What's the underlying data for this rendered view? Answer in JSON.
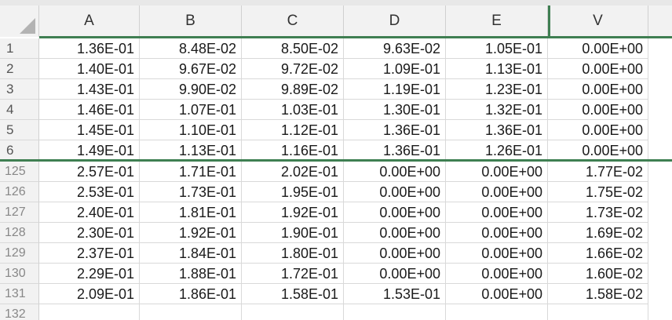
{
  "columns": [
    "A",
    "B",
    "C",
    "D",
    "E",
    "V"
  ],
  "top_rows": [
    {
      "num": "1",
      "cells": [
        "1.36E-01",
        "8.48E-02",
        "8.50E-02",
        "9.63E-02",
        "1.05E-01",
        "0.00E+00"
      ]
    },
    {
      "num": "2",
      "cells": [
        "1.40E-01",
        "9.67E-02",
        "9.72E-02",
        "1.09E-01",
        "1.13E-01",
        "0.00E+00"
      ]
    },
    {
      "num": "3",
      "cells": [
        "1.43E-01",
        "9.90E-02",
        "9.89E-02",
        "1.19E-01",
        "1.23E-01",
        "0.00E+00"
      ]
    },
    {
      "num": "4",
      "cells": [
        "1.46E-01",
        "1.07E-01",
        "1.03E-01",
        "1.30E-01",
        "1.32E-01",
        "0.00E+00"
      ]
    },
    {
      "num": "5",
      "cells": [
        "1.45E-01",
        "1.10E-01",
        "1.12E-01",
        "1.36E-01",
        "1.36E-01",
        "0.00E+00"
      ]
    },
    {
      "num": "6",
      "cells": [
        "1.49E-01",
        "1.13E-01",
        "1.16E-01",
        "1.36E-01",
        "1.26E-01",
        "0.00E+00"
      ]
    }
  ],
  "bottom_rows": [
    {
      "num": "125",
      "cells": [
        "2.57E-01",
        "1.71E-01",
        "2.02E-01",
        "0.00E+00",
        "0.00E+00",
        "1.77E-02"
      ]
    },
    {
      "num": "126",
      "cells": [
        "2.53E-01",
        "1.73E-01",
        "1.95E-01",
        "0.00E+00",
        "0.00E+00",
        "1.75E-02"
      ]
    },
    {
      "num": "127",
      "cells": [
        "2.40E-01",
        "1.81E-01",
        "1.92E-01",
        "0.00E+00",
        "0.00E+00",
        "1.73E-02"
      ]
    },
    {
      "num": "128",
      "cells": [
        "2.30E-01",
        "1.92E-01",
        "1.90E-01",
        "0.00E+00",
        "0.00E+00",
        "1.69E-02"
      ]
    },
    {
      "num": "129",
      "cells": [
        "2.37E-01",
        "1.84E-01",
        "1.80E-01",
        "0.00E+00",
        "0.00E+00",
        "1.66E-02"
      ]
    },
    {
      "num": "130",
      "cells": [
        "2.29E-01",
        "1.88E-01",
        "1.72E-01",
        "0.00E+00",
        "0.00E+00",
        "1.60E-02"
      ]
    },
    {
      "num": "131",
      "cells": [
        "2.09E-01",
        "1.86E-01",
        "1.58E-01",
        "1.53E-01",
        "0.00E+00",
        "1.58E-02"
      ]
    },
    {
      "num": "132",
      "cells": [
        "",
        "",
        "",
        "",
        "",
        ""
      ]
    }
  ],
  "colors": {
    "freeze_line": "#3f7f52",
    "header_bg": "#f2f2f2",
    "gridline": "#d9d9d9"
  },
  "icons": {
    "select_all": "select-all-triangle-icon"
  }
}
